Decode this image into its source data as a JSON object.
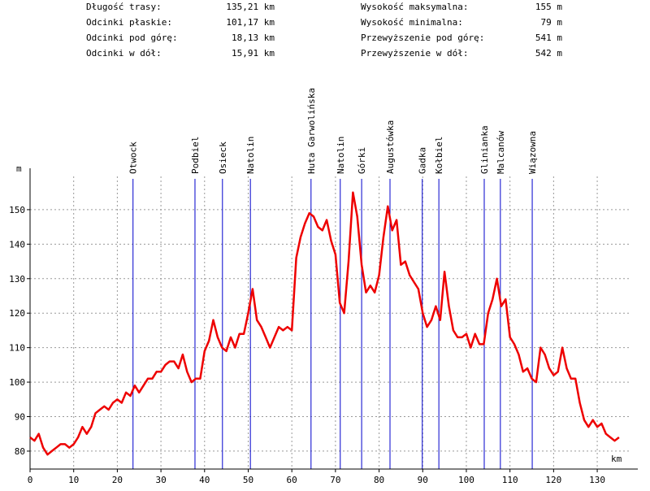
{
  "chart_data": {
    "type": "line",
    "stats_left": [
      {
        "label": "Długość trasy:",
        "value": "135,21 km"
      },
      {
        "label": "Odcinki płaskie:",
        "value": "101,17 km"
      },
      {
        "label": "Odcinki pod górę:",
        "value": "18,13 km"
      },
      {
        "label": "Odcinki w dół:",
        "value": "15,91 km"
      }
    ],
    "stats_right": [
      {
        "label": "Wysokość maksymalna:",
        "value": "155 m"
      },
      {
        "label": "Wysokość minimalna:",
        "value": "79 m"
      },
      {
        "label": "Przewyższenie pod górę:",
        "value": "541 m"
      },
      {
        "label": "Przewyższenie w dół:",
        "value": "542 m"
      }
    ],
    "y_axis_label": "m",
    "x_axis_label": "km",
    "markers": [
      {
        "name": "Otwock",
        "x": 23.6
      },
      {
        "name": "Podbiel",
        "x": 37.8
      },
      {
        "name": "Osieck",
        "x": 44.1
      },
      {
        "name": "Natolin",
        "x": 50.5
      },
      {
        "name": "Huta Garwolińska",
        "x": 64.4
      },
      {
        "name": "Natolin",
        "x": 71.1
      },
      {
        "name": "Górki",
        "x": 76.0
      },
      {
        "name": "Augustówka",
        "x": 82.5
      },
      {
        "name": "Gadka",
        "x": 89.9
      },
      {
        "name": "Kołbiel",
        "x": 93.7
      },
      {
        "name": "Glinianka",
        "x": 104.1
      },
      {
        "name": "Malcanów",
        "x": 107.8
      },
      {
        "name": "Wiązowna",
        "x": 115.1
      }
    ],
    "marker_color": "#0000cc",
    "series": [
      {
        "color": "#ee0000",
        "x": [
          0,
          1,
          2,
          3,
          4,
          5,
          6,
          7,
          8,
          9,
          10,
          11,
          12,
          13,
          14,
          15,
          16,
          17,
          18,
          19,
          20,
          21,
          22,
          23,
          24,
          25,
          26,
          27,
          28,
          29,
          30,
          31,
          32,
          33,
          34,
          35,
          36,
          37,
          38,
          39,
          40,
          41,
          42,
          43,
          44,
          45,
          46,
          47,
          48,
          49,
          50,
          51,
          52,
          53,
          54,
          55,
          56,
          57,
          58,
          59,
          60,
          61,
          62,
          63,
          64,
          65,
          66,
          67,
          68,
          69,
          70,
          71,
          72,
          73,
          74,
          75,
          76,
          77,
          78,
          79,
          80,
          81,
          82,
          83,
          84,
          85,
          86,
          87,
          88,
          89,
          90,
          91,
          92,
          93,
          94,
          95,
          96,
          97,
          98,
          99,
          100,
          101,
          102,
          103,
          104,
          105,
          106,
          107,
          108,
          109,
          110,
          111,
          112,
          113,
          114,
          115,
          116,
          117,
          118,
          119,
          120,
          121,
          122,
          123,
          124,
          125,
          126,
          127,
          128,
          129,
          130,
          131,
          132,
          133,
          134,
          135
        ],
        "values": [
          84,
          83,
          85,
          81,
          79,
          80,
          81,
          82,
          82,
          81,
          82,
          84,
          87,
          85,
          87,
          91,
          92,
          93,
          92,
          94,
          95,
          94,
          97,
          96,
          99,
          97,
          99,
          101,
          101,
          103,
          103,
          105,
          106,
          106,
          104,
          108,
          103,
          100,
          101,
          101,
          109,
          112,
          118,
          113,
          110,
          109,
          113,
          110,
          114,
          114,
          120,
          127,
          118,
          116,
          113,
          110,
          113,
          116,
          115,
          116,
          115,
          136,
          142,
          146,
          149,
          148,
          145,
          144,
          147,
          141,
          137,
          123,
          120,
          135,
          155,
          148,
          134,
          126,
          128,
          126,
          131,
          142,
          151,
          144,
          147,
          134,
          135,
          131,
          129,
          127,
          120,
          116,
          118,
          122,
          118,
          132,
          122,
          115,
          113,
          113,
          114,
          110,
          114,
          111,
          111,
          120,
          124,
          130,
          122,
          124,
          113,
          111,
          108,
          103,
          104,
          101,
          100,
          110,
          108,
          104,
          102,
          103,
          110,
          104,
          101,
          101,
          94,
          89,
          87,
          89,
          87,
          88,
          85,
          84,
          83,
          84
        ]
      }
    ],
    "xlim": [
      0,
      139.3
    ],
    "ylim": [
      74.8,
      162
    ],
    "xticks": [
      0,
      10,
      20,
      30,
      40,
      50,
      60,
      70,
      80,
      90,
      100,
      110,
      120,
      130
    ],
    "yticks": [
      80,
      90,
      100,
      110,
      120,
      130,
      140,
      150
    ],
    "grid": true
  }
}
